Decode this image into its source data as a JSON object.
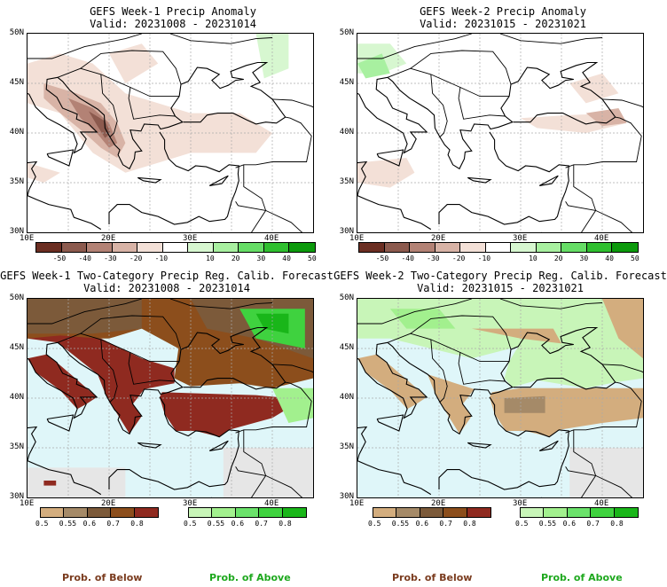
{
  "panels": [
    {
      "id": "w1-anom",
      "title": "GEFS Week-1 Precip Anomaly",
      "valid": "Valid: 20231008 - 20231014",
      "lat_labels": [
        "50N",
        "45N",
        "40N",
        "35N",
        "30N"
      ],
      "lon_labels": [
        "10E",
        "20E",
        "30E",
        "40E"
      ],
      "colorbar_labels": [
        "-50",
        "-40",
        "-30",
        "-20",
        "-10",
        "10",
        "20",
        "30",
        "40",
        "50"
      ]
    },
    {
      "id": "w2-anom",
      "title": "GEFS Week-2 Precip Anomaly",
      "valid": "Valid: 20231015 - 20231021",
      "lat_labels": [
        "50N",
        "45N",
        "40N",
        "35N",
        "30N"
      ],
      "lon_labels": [
        "10E",
        "20E",
        "30E",
        "40E"
      ],
      "colorbar_labels": [
        "-50",
        "-40",
        "-30",
        "-20",
        "-10",
        "10",
        "20",
        "30",
        "40",
        "50"
      ]
    },
    {
      "id": "w1-prob",
      "title": "GEFS Week-1 Two-Category Precip Reg. Calib. Forecast",
      "valid": "Valid: 20231008 - 20231014",
      "lat_labels": [
        "50N",
        "45N",
        "40N",
        "35N",
        "30N"
      ],
      "lon_labels": [
        "10E",
        "20E",
        "30E",
        "40E"
      ],
      "below_labels": [
        "0.5",
        "0.55",
        "0.6",
        "0.7",
        "0.8"
      ],
      "above_labels": [
        "0.5",
        "0.55",
        "0.6",
        "0.7",
        "0.8"
      ]
    },
    {
      "id": "w2-prob",
      "title": "GEFS Week-2 Two-Category Precip Reg. Calib. Forecast",
      "valid": "Valid: 20231015 - 20231021",
      "lat_labels": [
        "50N",
        "45N",
        "40N",
        "35N",
        "30N"
      ],
      "lon_labels": [
        "10E",
        "20E",
        "30E",
        "40E"
      ],
      "below_labels": [
        "0.5",
        "0.55",
        "0.6",
        "0.7",
        "0.8"
      ],
      "above_labels": [
        "0.5",
        "0.55",
        "0.6",
        "0.7",
        "0.8"
      ]
    }
  ],
  "legend": {
    "below_text": "Prob. of Below",
    "above_text": "Prob. of Above",
    "below_color": "#7a3b1e",
    "above_color": "#1ea81e"
  },
  "colors": {
    "anomaly_scale": [
      "#6b2e22",
      "#8c5a4e",
      "#b38275",
      "#d8b3a6",
      "#f3e0d7",
      "#ffffff",
      "#d7f7d0",
      "#a8f0a0",
      "#66dd66",
      "#2fbf2f",
      "#0c9a0c"
    ],
    "below_scale": [
      "#d3ad7e",
      "#a58a68",
      "#7c5a3a",
      "#8c4e1c",
      "#8f2a20"
    ],
    "above_scale": [
      "#c8f5b8",
      "#a2f08e",
      "#6be26b",
      "#3fd23f",
      "#19b619"
    ],
    "sea": "#dff6f9",
    "no_data": "#e6e6e6"
  },
  "map_extent": {
    "lon_min": 10,
    "lon_max": 45,
    "lat_min": 30,
    "lat_max": 50
  }
}
